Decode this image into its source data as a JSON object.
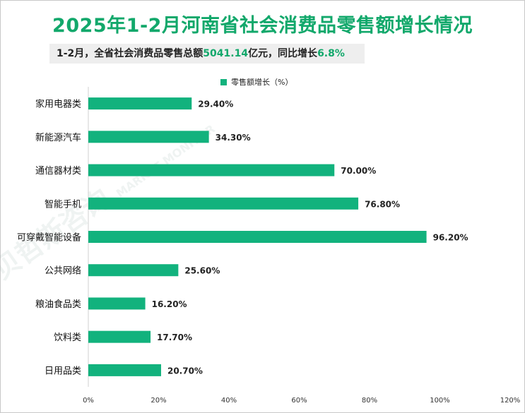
{
  "title": "2025年1-2月河南省社会消费品零售额增长情况",
  "subtitle": {
    "prefix": "1-2月，全省社会消费品零售总额",
    "amount": "5041.14",
    "middle": "亿元，同比增长",
    "growth": "6.8%"
  },
  "watermark": {
    "brand": "贝哲斯咨询",
    "brand_en": "MARKET MONITOR"
  },
  "colors": {
    "bar": "#12b27d",
    "title": "#12a86b"
  },
  "chart_data": {
    "type": "bar",
    "orientation": "horizontal",
    "title": "2025年1-2月河南省社会消费品零售额增长情况",
    "legend": "零售额增长（%）",
    "legend_position": "top",
    "categories": [
      "家用电器类",
      "新能源汽车",
      "通信器材类",
      "智能手机",
      "可穿戴智能设备",
      "公共网络",
      "粮油食品类",
      "饮料类",
      "日用品类"
    ],
    "values": [
      29.4,
      34.3,
      70.0,
      76.8,
      96.2,
      25.6,
      16.2,
      17.7,
      20.7
    ],
    "value_labels": [
      "29.40%",
      "34.30%",
      "70.00%",
      "76.80%",
      "96.20%",
      "25.60%",
      "16.20%",
      "17.70%",
      "20.70%"
    ],
    "x_ticks": [
      "0%",
      "20%",
      "40%",
      "60%",
      "80%",
      "100%",
      "120%"
    ],
    "xlim": [
      0,
      120
    ],
    "grid": false
  }
}
